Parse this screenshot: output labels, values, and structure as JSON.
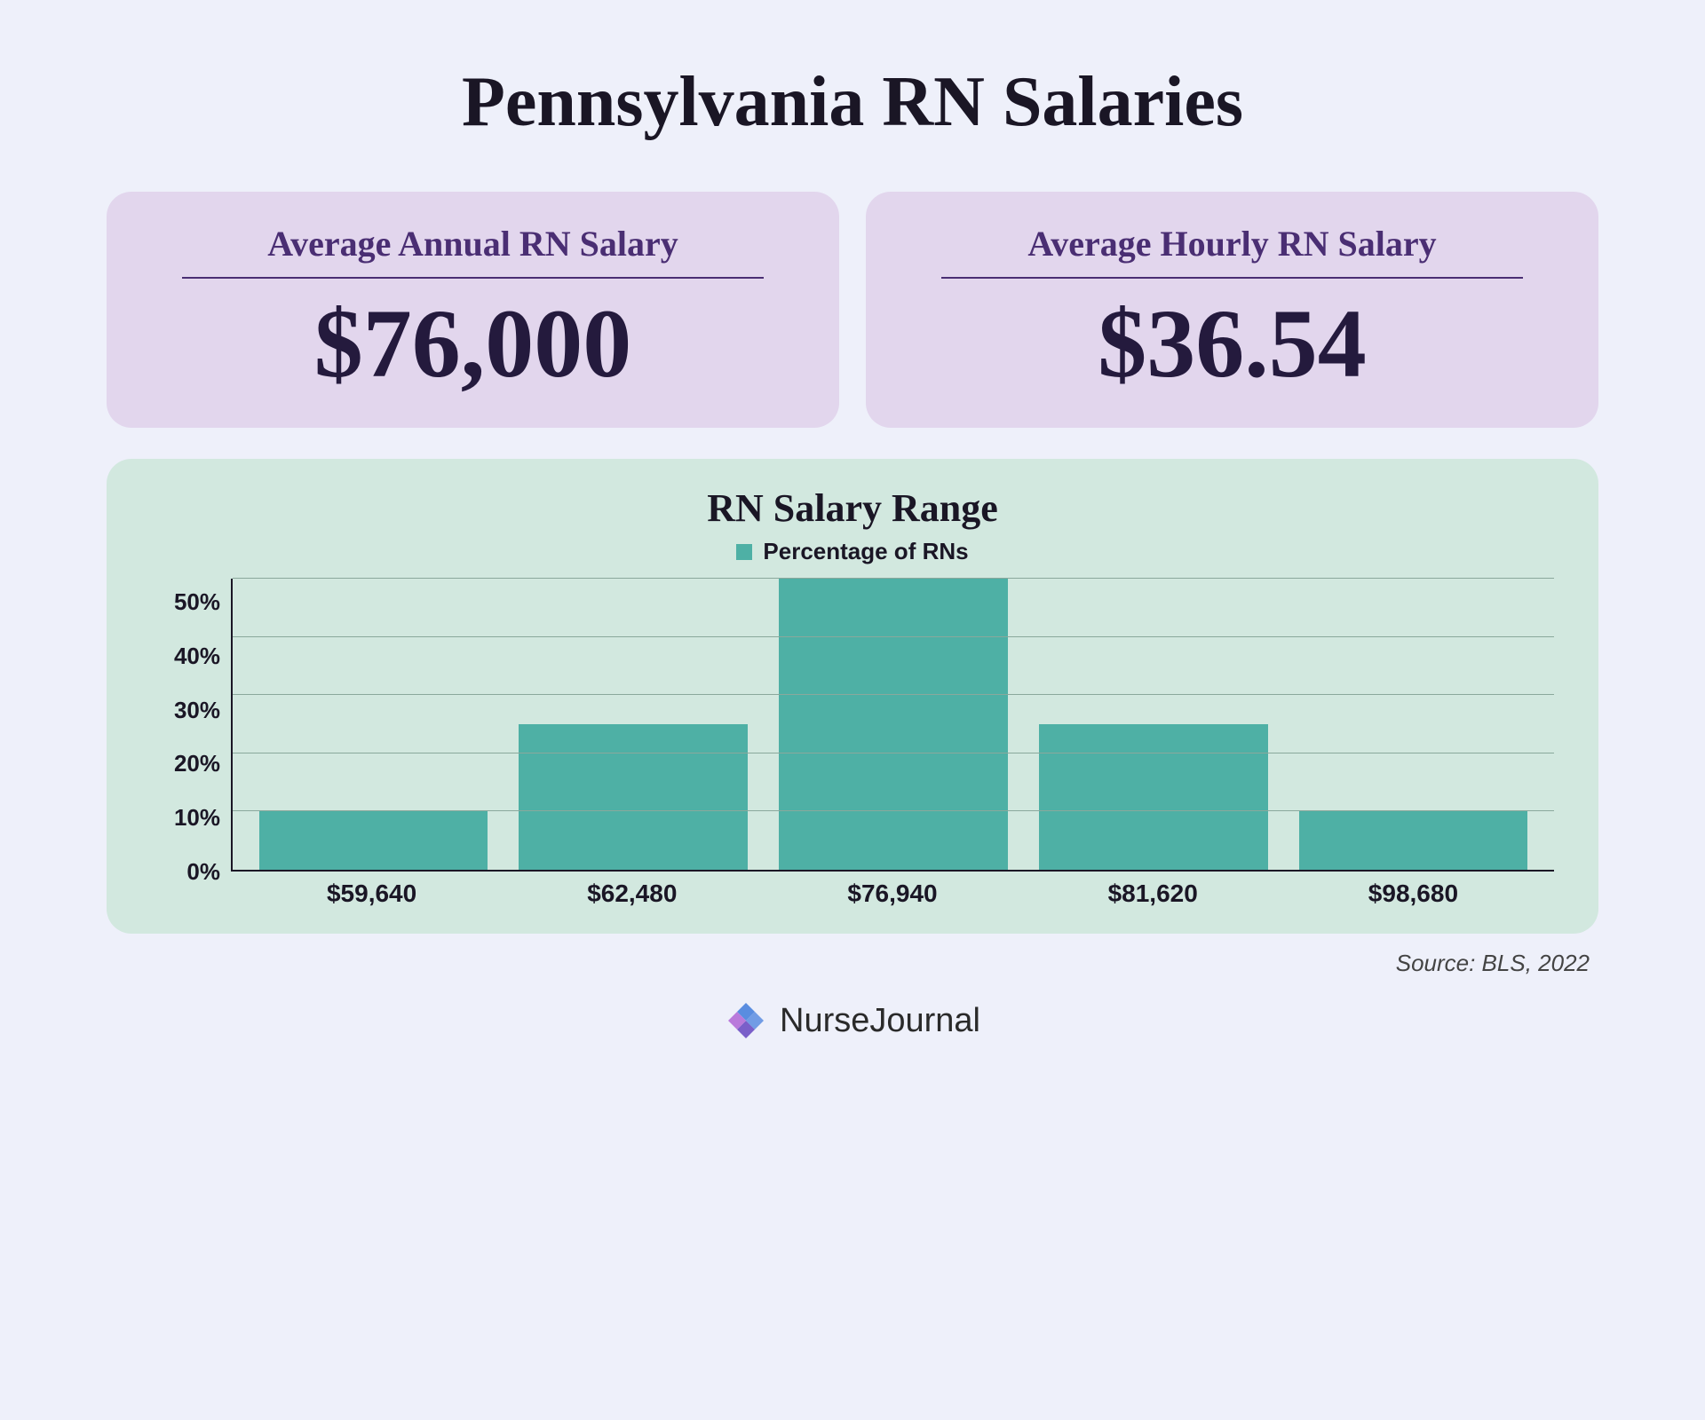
{
  "title": "Pennsylvania RN Salaries",
  "cards": {
    "annual": {
      "label": "Average Annual RN Salary",
      "value": "$76,000"
    },
    "hourly": {
      "label": "Average Hourly RN Salary",
      "value": "$36.54"
    }
  },
  "chart": {
    "type": "bar",
    "title": "RN Salary Range",
    "legend_label": "Percentage of RNs",
    "ylim": [
      0,
      50
    ],
    "ytick_step": 10,
    "yticks": [
      "50%",
      "40%",
      "30%",
      "20%",
      "10%",
      "0%"
    ],
    "categories": [
      "$59,640",
      "$62,480",
      "$76,940",
      "$81,620",
      "$98,680"
    ],
    "values": [
      10,
      25,
      50,
      25,
      10
    ],
    "bar_color": "#4eb0a5",
    "panel_bg": "#d2e8df",
    "grid_color": "#8aa89c",
    "axis_color": "#1a1625",
    "bar_width": 0.88,
    "title_fontsize": 44,
    "legend_fontsize": 26,
    "tick_fontsize": 26,
    "xlabel_fontsize": 28
  },
  "card_style": {
    "bg": "#e2d6ed",
    "label_color": "#4a2e73",
    "value_color": "#241a3d",
    "label_fontsize": 40,
    "value_fontsize": 110
  },
  "page_bg": "#eef0fa",
  "title_color": "#1a1625",
  "title_fontsize": 80,
  "source": "Source: BLS, 2022",
  "brand": "NurseJournal",
  "brand_colors": {
    "a": "#5a8de0",
    "b": "#7a5fc9",
    "c": "#b97adb"
  }
}
